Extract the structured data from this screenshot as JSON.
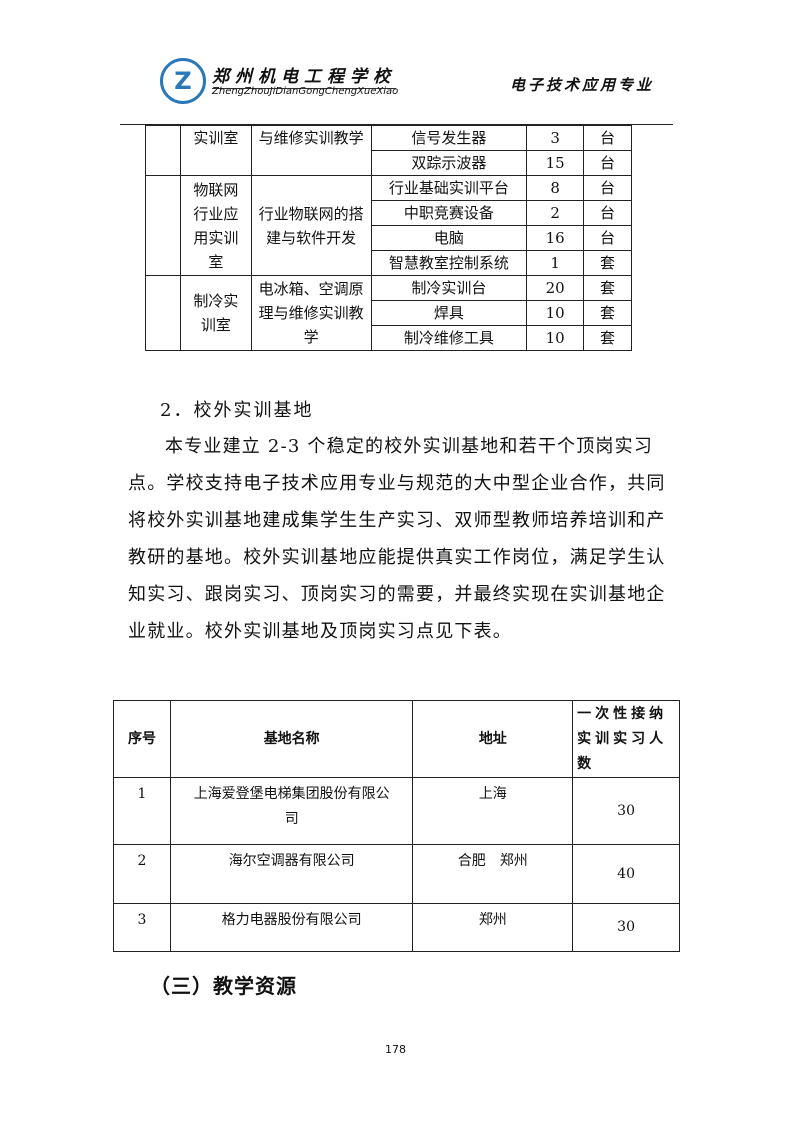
{
  "header": {
    "school_cn": "郑州机电工程学校",
    "school_en": "ZhengZhouJiDianGongChengXueXiao",
    "major": "电子技术应用专业",
    "logo_icon": "school-logo"
  },
  "table1": {
    "rows": [
      {
        "room": "实训室",
        "content": "与维修实训教学",
        "items": [
          {
            "name": "信号发生器",
            "qty": "3",
            "unit": "台"
          },
          {
            "name": "双踪示波器",
            "qty": "15",
            "unit": "台"
          }
        ]
      },
      {
        "room": "物联网行业应用实训室",
        "content": "行业物联网的搭建与软件开发",
        "items": [
          {
            "name": "行业基础实训平台",
            "qty": "8",
            "unit": "台"
          },
          {
            "name": "中职竞赛设备",
            "qty": "2",
            "unit": "台"
          },
          {
            "name": "电脑",
            "qty": "16",
            "unit": "台"
          },
          {
            "name": "智慧教室控制系统",
            "qty": "1",
            "unit": "套"
          }
        ]
      },
      {
        "room": "制冷实训室",
        "content": "电冰箱、空调原理与维修实训教学",
        "items": [
          {
            "name": "制冷实训台",
            "qty": "20",
            "unit": "套"
          },
          {
            "name": "焊具",
            "qty": "10",
            "unit": "套"
          },
          {
            "name": "制冷维修工具",
            "qty": "10",
            "unit": "套"
          }
        ]
      }
    ]
  },
  "section2": {
    "heading": "2．校外实训基地",
    "lines": [
      "本专业建立 2-3 个稳定的校外实训基地和若干个顶岗实习",
      "点。学校支持电子技术应用专业与规范的大中型企业合作，共同",
      "将校外实训基地建成集学生生产实习、双师型教师培养培训和产",
      "教研的基地。校外实训基地应能提供真实工作岗位，满足学生认",
      "知实习、跟岗实习、顶岗实习的需要，并最终实现在实训基地企",
      "业就业。校外实训基地及顶岗实习点见下表。"
    ]
  },
  "table2": {
    "headers": [
      "序号",
      "基地名称",
      "地址",
      "一次性接纳实训实习人数"
    ],
    "rows": [
      [
        "1",
        "上海爱登堡电梯集团股份有限公司",
        "上海",
        "30"
      ],
      [
        "2",
        "海尔空调器有限公司",
        "合肥　郑州",
        "40"
      ],
      [
        "3",
        "格力电器股份有限公司",
        "郑州",
        "30"
      ]
    ]
  },
  "section3": {
    "heading": "（三）教学资源"
  },
  "footer": {
    "page_number": "178"
  }
}
